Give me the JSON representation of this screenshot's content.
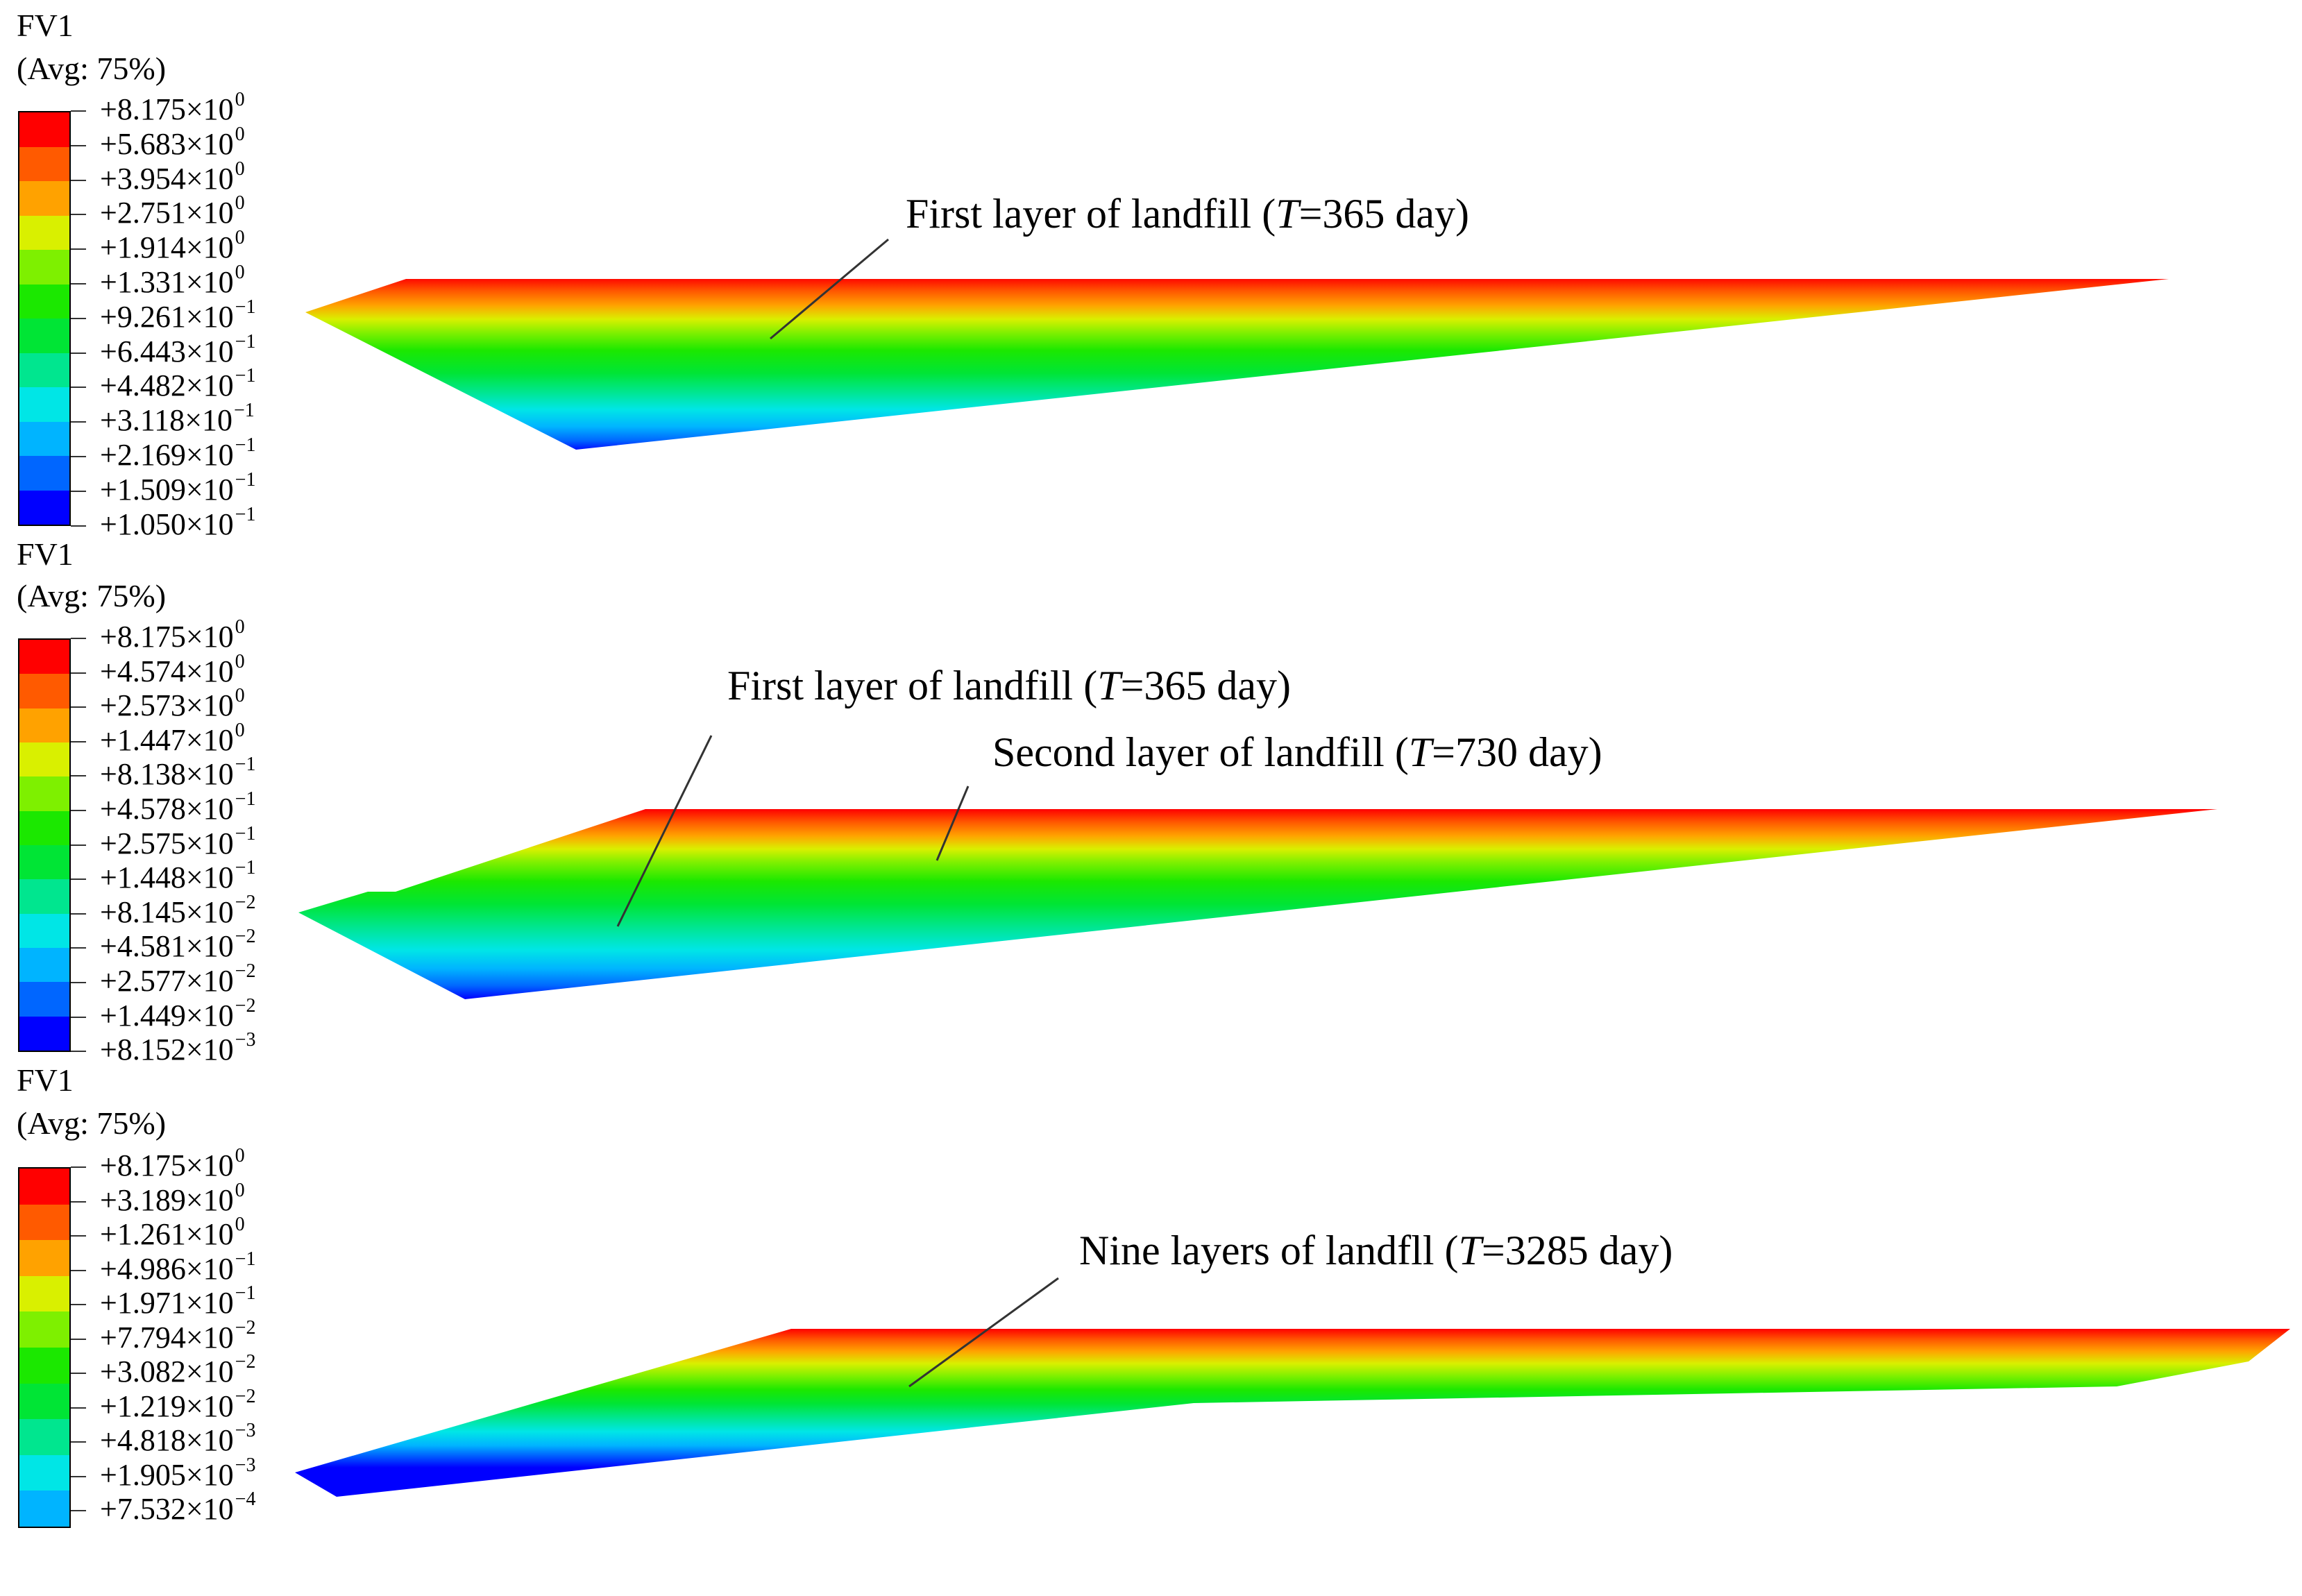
{
  "panels": [
    {
      "legend": {
        "variable": "FV1",
        "averaging": "(Avg: 75%)",
        "colors": [
          "#ff0000",
          "#ff5a00",
          "#ffa200",
          "#d9f000",
          "#7ef000",
          "#1be800",
          "#00e535",
          "#00e68f",
          "#00e6e6",
          "#00b4ff",
          "#0066ff",
          "#0000ff"
        ],
        "ticks": [
          {
            "mantissa": "+8.175",
            "times": "×10",
            "exponent": "0"
          },
          {
            "mantissa": "+5.683",
            "times": "×10",
            "exponent": "0"
          },
          {
            "mantissa": "+3.954",
            "times": "×10",
            "exponent": "0"
          },
          {
            "mantissa": "+2.751",
            "times": "×10",
            "exponent": "0"
          },
          {
            "mantissa": "+1.914",
            "times": "×10",
            "exponent": "0"
          },
          {
            "mantissa": "+1.331",
            "times": "×10",
            "exponent": "0"
          },
          {
            "mantissa": "+9.261",
            "times": "×10",
            "exponent": "−1"
          },
          {
            "mantissa": "+6.443",
            "times": "×10",
            "exponent": "−1"
          },
          {
            "mantissa": "+4.482",
            "times": "×10",
            "exponent": "−1"
          },
          {
            "mantissa": "+3.118",
            "times": "×10",
            "exponent": "−1"
          },
          {
            "mantissa": "+2.169",
            "times": "×10",
            "exponent": "−1"
          },
          {
            "mantissa": "+1.509",
            "times": "×10",
            "exponent": "−1"
          },
          {
            "mantissa": "+1.050",
            "times": "×10",
            "exponent": "−1"
          }
        ]
      },
      "annotations": [
        {
          "prefix": "First layer of landfill (",
          "var": "T",
          "suffix": "=365 day)"
        }
      ]
    },
    {
      "legend": {
        "variable": "FV1",
        "averaging": "(Avg: 75%)",
        "colors": [
          "#ff0000",
          "#ff5a00",
          "#ffa200",
          "#d9f000",
          "#7ef000",
          "#1be800",
          "#00e535",
          "#00e68f",
          "#00e6e6",
          "#00b4ff",
          "#0066ff",
          "#0000ff"
        ],
        "ticks": [
          {
            "mantissa": "+8.175",
            "times": "×10",
            "exponent": "0"
          },
          {
            "mantissa": "+4.574",
            "times": "×10",
            "exponent": "0"
          },
          {
            "mantissa": "+2.573",
            "times": "×10",
            "exponent": "0"
          },
          {
            "mantissa": "+1.447",
            "times": "×10",
            "exponent": "0"
          },
          {
            "mantissa": "+8.138",
            "times": "×10",
            "exponent": "−1"
          },
          {
            "mantissa": "+4.578",
            "times": "×10",
            "exponent": "−1"
          },
          {
            "mantissa": "+2.575",
            "times": "×10",
            "exponent": "−1"
          },
          {
            "mantissa": "+1.448",
            "times": "×10",
            "exponent": "−1"
          },
          {
            "mantissa": "+8.145",
            "times": "×10",
            "exponent": "−2"
          },
          {
            "mantissa": "+4.581",
            "times": "×10",
            "exponent": "−2"
          },
          {
            "mantissa": "+2.577",
            "times": "×10",
            "exponent": "−2"
          },
          {
            "mantissa": "+1.449",
            "times": "×10",
            "exponent": "−2"
          },
          {
            "mantissa": "+8.152",
            "times": "×10",
            "exponent": "−3"
          }
        ]
      },
      "annotations": [
        {
          "prefix": "First layer of landfill (",
          "var": "T",
          "suffix": "=365 day)"
        },
        {
          "prefix": "Second layer of landfill (",
          "var": "T",
          "suffix": "=730 day)"
        }
      ]
    },
    {
      "legend": {
        "variable": "FV1",
        "averaging": "(Avg: 75%)",
        "colors": [
          "#ff0000",
          "#ff5a00",
          "#ffa200",
          "#d9f000",
          "#7ef000",
          "#1be800",
          "#00e535",
          "#00e68f",
          "#00e6e6",
          "#00b4ff"
        ],
        "ticks": [
          {
            "mantissa": "+8.175",
            "times": "×10",
            "exponent": "0"
          },
          {
            "mantissa": "+3.189",
            "times": "×10",
            "exponent": "0"
          },
          {
            "mantissa": "+1.261",
            "times": "×10",
            "exponent": "0"
          },
          {
            "mantissa": "+4.986",
            "times": "×10",
            "exponent": "−1"
          },
          {
            "mantissa": "+1.971",
            "times": "×10",
            "exponent": "−1"
          },
          {
            "mantissa": "+7.794",
            "times": "×10",
            "exponent": "−2"
          },
          {
            "mantissa": "+3.082",
            "times": "×10",
            "exponent": "−2"
          },
          {
            "mantissa": "+1.219",
            "times": "×10",
            "exponent": "−2"
          },
          {
            "mantissa": "+4.818",
            "times": "×10",
            "exponent": "−3"
          },
          {
            "mantissa": "+1.905",
            "times": "×10",
            "exponent": "−3"
          },
          {
            "mantissa": "+7.532",
            "times": "×10",
            "exponent": "−4"
          }
        ]
      },
      "annotations": [
        {
          "prefix": "Nine layers of landfll (",
          "var": "T",
          "suffix": "=3285 day)"
        }
      ]
    }
  ]
}
